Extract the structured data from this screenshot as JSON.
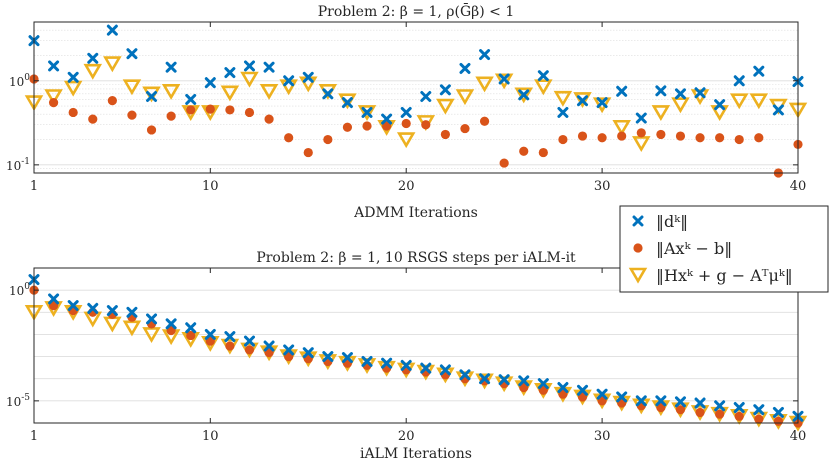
{
  "colors": {
    "d_series": "#0072BD",
    "r_series": "#D95319",
    "s_series": "#EDB120",
    "grid": "#dedede",
    "axes": "#262626"
  },
  "legend": {
    "entries": [
      {
        "label": "‖dᵏ‖",
        "marker": "x-marker"
      },
      {
        "label": "‖Axᵏ − b‖",
        "marker": "circle-marker"
      },
      {
        "label": "‖Hxᵏ + g − Aᵀμᵏ‖",
        "marker": "triangle-marker"
      }
    ]
  },
  "chart_data": [
    {
      "type": "scatter",
      "title": "Problem 2: β = 1, ρ(Ḡβ) < 1",
      "xlabel": "ADMM Iterations",
      "ylabel": "",
      "yscale": "log",
      "xlim": [
        1,
        40
      ],
      "ylim": [
        0.08,
        5
      ],
      "xticks": [
        1,
        10,
        20,
        30,
        40
      ],
      "yticks": [
        {
          "value": 1,
          "label": "10^0"
        },
        {
          "value": 0.1,
          "label": "10^-1"
        }
      ],
      "x": [
        1,
        2,
        3,
        4,
        5,
        6,
        7,
        8,
        9,
        10,
        11,
        12,
        13,
        14,
        15,
        16,
        17,
        18,
        19,
        20,
        21,
        22,
        23,
        24,
        25,
        26,
        27,
        28,
        29,
        30,
        31,
        32,
        33,
        34,
        35,
        36,
        37,
        38,
        39,
        40
      ],
      "series": [
        {
          "name": "‖dᵏ‖",
          "marker": "x",
          "values": [
            3.0,
            1.5,
            1.1,
            1.85,
            4.0,
            2.1,
            0.65,
            1.45,
            0.6,
            0.95,
            1.25,
            1.5,
            1.45,
            1.0,
            1.1,
            0.7,
            0.55,
            0.42,
            0.35,
            0.42,
            0.65,
            0.78,
            1.4,
            2.05,
            1.05,
            0.68,
            1.15,
            0.42,
            0.58,
            0.55,
            0.75,
            0.36,
            0.76,
            0.7,
            0.72,
            0.52,
            1.0,
            1.3,
            0.45,
            0.98
          ]
        },
        {
          "name": "‖Axᵏ − b‖",
          "marker": "o",
          "values": [
            1.05,
            0.55,
            0.42,
            0.35,
            0.58,
            0.39,
            0.26,
            0.38,
            0.45,
            0.46,
            0.45,
            0.42,
            0.35,
            0.21,
            0.14,
            0.2,
            0.28,
            0.29,
            0.29,
            0.31,
            0.3,
            0.23,
            0.27,
            0.33,
            0.105,
            0.145,
            0.14,
            0.2,
            0.22,
            0.21,
            0.22,
            0.24,
            0.23,
            0.22,
            0.21,
            0.21,
            0.2,
            0.21,
            0.08,
            0.175
          ]
        },
        {
          "name": "‖Hxᵏ + g − Aᵀμᵏ‖",
          "marker": "v",
          "values": [
            0.55,
            0.65,
            0.82,
            1.3,
            1.6,
            0.85,
            0.7,
            0.75,
            0.42,
            0.42,
            0.72,
            1.05,
            0.75,
            0.85,
            0.92,
            0.75,
            0.58,
            0.42,
            0.28,
            0.2,
            0.32,
            0.5,
            0.65,
            0.92,
            1.0,
            0.68,
            0.85,
            0.62,
            0.6,
            0.52,
            0.28,
            0.18,
            0.42,
            0.52,
            0.65,
            0.42,
            0.58,
            0.58,
            0.5,
            0.45
          ]
        }
      ]
    },
    {
      "type": "scatter",
      "title": "Problem 2: β = 1, 10 RSGS steps per iALM-it",
      "xlabel": "iALM Iterations",
      "ylabel": "",
      "yscale": "log",
      "xlim": [
        1,
        40
      ],
      "ylim": [
        1e-06,
        10
      ],
      "xticks": [
        1,
        10,
        20,
        30,
        40
      ],
      "yticks": [
        {
          "value": 1,
          "label": "10^0"
        },
        {
          "value": 1e-05,
          "label": "10^-5"
        }
      ],
      "x": [
        1,
        2,
        3,
        4,
        5,
        6,
        7,
        8,
        9,
        10,
        11,
        12,
        13,
        14,
        15,
        16,
        17,
        18,
        19,
        20,
        21,
        22,
        23,
        24,
        25,
        26,
        27,
        28,
        29,
        30,
        31,
        32,
        33,
        34,
        35,
        36,
        37,
        38,
        39,
        40
      ],
      "series": [
        {
          "name": "‖dᵏ‖",
          "marker": "x",
          "values": [
            3,
            0.4,
            0.2,
            0.15,
            0.12,
            0.1,
            0.05,
            0.03,
            0.02,
            0.01,
            0.008,
            0.005,
            0.003,
            0.002,
            0.0015,
            0.001,
            0.0009,
            0.0006,
            0.0005,
            0.0004,
            0.0003,
            0.00025,
            0.00015,
            0.0001,
            9e-05,
            8e-05,
            6e-05,
            4e-05,
            3e-05,
            2e-05,
            1.5e-05,
            1e-05,
            1e-05,
            9e-06,
            8e-06,
            6e-06,
            5e-06,
            4e-06,
            3e-06,
            2e-06
          ]
        },
        {
          "name": "‖Axᵏ − b‖",
          "marker": "o",
          "values": [
            1,
            0.2,
            0.12,
            0.1,
            0.08,
            0.06,
            0.03,
            0.015,
            0.009,
            0.005,
            0.003,
            0.002,
            0.0015,
            0.001,
            0.0008,
            0.0006,
            0.0005,
            0.0004,
            0.0003,
            0.00025,
            0.0002,
            0.00015,
            0.0001,
            8e-05,
            6e-05,
            4e-05,
            3e-05,
            2e-05,
            1.5e-05,
            1e-05,
            8e-06,
            6e-06,
            5e-06,
            4e-06,
            3e-06,
            2.5e-06,
            2e-06,
            1.5e-06,
            1.2e-06,
            1e-06
          ]
        },
        {
          "name": "‖Hxᵏ + g − Aᵀμᵏ‖",
          "marker": "v",
          "values": [
            0.1,
            0.15,
            0.1,
            0.05,
            0.03,
            0.02,
            0.01,
            0.008,
            0.006,
            0.004,
            0.003,
            0.002,
            0.0015,
            0.001,
            0.0008,
            0.0006,
            0.0005,
            0.0004,
            0.0003,
            0.00025,
            0.0002,
            0.00015,
            0.0001,
            8e-05,
            6e-05,
            4e-05,
            3e-05,
            2e-05,
            1.5e-05,
            1e-05,
            8e-06,
            6e-06,
            5e-06,
            4e-06,
            3e-06,
            2.5e-06,
            2e-06,
            1.5e-06,
            1.2e-06,
            1e-06
          ]
        }
      ]
    }
  ]
}
